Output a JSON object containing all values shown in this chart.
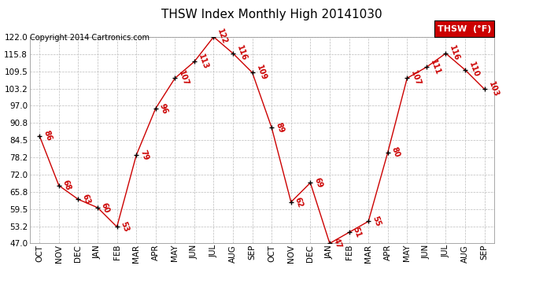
{
  "title": "THSW Index Monthly High 20141030",
  "copyright": "Copyright 2014 Cartronics.com",
  "legend_label": "THSW  (°F)",
  "x_labels": [
    "OCT",
    "NOV",
    "DEC",
    "JAN",
    "FEB",
    "MAR",
    "APR",
    "MAY",
    "JUN",
    "JUL",
    "AUG",
    "SEP",
    "OCT",
    "NOV",
    "DEC",
    "JAN",
    "FEB",
    "MAR",
    "APR",
    "MAY",
    "JUN",
    "JUL",
    "AUG",
    "SEP"
  ],
  "y_values": [
    86,
    68,
    63,
    60,
    53,
    79,
    96,
    107,
    113,
    122,
    116,
    109,
    89,
    62,
    69,
    47,
    51,
    55,
    80,
    107,
    111,
    116,
    110,
    103
  ],
  "ylim": [
    47.0,
    122.0
  ],
  "yticks": [
    47.0,
    53.2,
    59.5,
    65.8,
    72.0,
    78.2,
    84.5,
    90.8,
    97.0,
    103.2,
    109.5,
    115.8,
    122.0
  ],
  "ytick_labels": [
    "47.0",
    "53.2",
    "59.5",
    "65.8",
    "72.0",
    "78.2",
    "84.5",
    "90.8",
    "97.0",
    "103.2",
    "109.5",
    "115.8",
    "122.0"
  ],
  "line_color": "#cc0000",
  "marker_color": "#000000",
  "label_color": "#cc0000",
  "bg_color": "#ffffff",
  "grid_color": "#bbbbbb",
  "legend_bg": "#cc0000",
  "legend_text_color": "#ffffff",
  "title_fontsize": 11,
  "copyright_fontsize": 7,
  "label_fontsize": 7,
  "tick_fontsize": 7.5
}
